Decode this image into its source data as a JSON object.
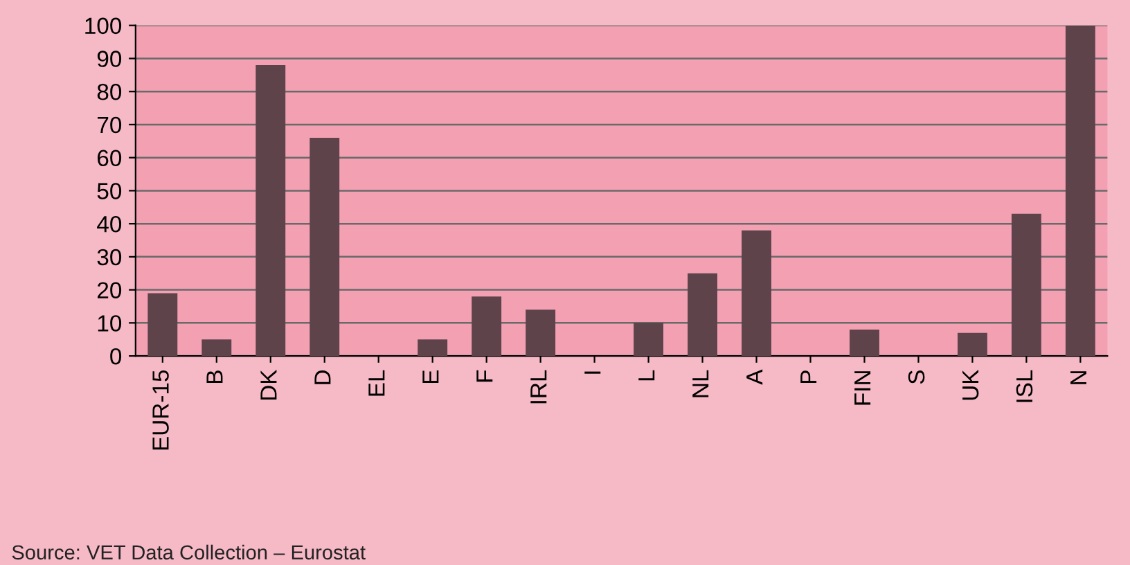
{
  "chart_data": {
    "type": "bar",
    "categories": [
      "EUR-15",
      "B",
      "DK",
      "D",
      "EL",
      "E",
      "F",
      "IRL",
      "I",
      "L",
      "NL",
      "A",
      "P",
      "FIN",
      "S",
      "UK",
      "ISL",
      "N"
    ],
    "values": [
      19,
      5,
      88,
      66,
      0,
      5,
      18,
      14,
      0,
      10,
      25,
      38,
      0,
      8,
      0,
      7,
      43,
      100
    ],
    "color": "#5e434b",
    "ylim": [
      0,
      100
    ],
    "yticks": [
      0,
      10,
      20,
      30,
      40,
      50,
      60,
      70,
      80,
      90,
      100
    ],
    "grid": "y",
    "annotations": [
      "Source: VET Data Collection – Eurostat"
    ]
  }
}
